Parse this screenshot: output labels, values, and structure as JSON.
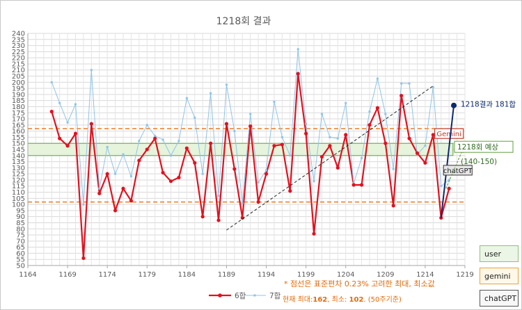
{
  "chart_data": {
    "type": "line",
    "title": "1218회 결과",
    "xlim": [
      1164,
      1219
    ],
    "ylim": [
      50,
      240
    ],
    "x_ticks": [
      1164,
      1169,
      1174,
      1179,
      1184,
      1189,
      1194,
      1199,
      1204,
      1209,
      1214,
      1219
    ],
    "y_ticks": [
      50,
      55,
      60,
      65,
      70,
      75,
      80,
      85,
      90,
      95,
      100,
      105,
      110,
      115,
      120,
      125,
      130,
      135,
      140,
      145,
      150,
      155,
      160,
      165,
      170,
      175,
      180,
      185,
      190,
      195,
      200,
      205,
      210,
      215,
      220,
      225,
      230,
      235,
      240
    ],
    "grid": true,
    "legend_position": "bottom",
    "series": [
      {
        "name": "6합",
        "color": "#e3101e",
        "x": [
          1167,
          1168,
          1169,
          1170,
          1171,
          1172,
          1173,
          1174,
          1175,
          1176,
          1177,
          1178,
          1179,
          1180,
          1181,
          1182,
          1183,
          1184,
          1185,
          1186,
          1187,
          1188,
          1189,
          1190,
          1191,
          1192,
          1193,
          1194,
          1195,
          1196,
          1197,
          1198,
          1199,
          1200,
          1201,
          1202,
          1203,
          1204,
          1205,
          1206,
          1207,
          1208,
          1209,
          1210,
          1211,
          1212,
          1213,
          1214,
          1215,
          1216,
          1217
        ],
        "y": [
          176,
          154,
          148,
          158,
          56,
          166,
          109,
          125,
          95,
          113,
          103,
          136,
          145,
          154,
          126,
          119,
          122,
          146,
          134,
          90,
          150,
          87,
          166,
          129,
          89,
          164,
          102,
          125,
          148,
          149,
          111,
          207,
          158,
          76,
          139,
          148,
          130,
          157,
          116,
          116,
          165,
          179,
          150,
          99,
          189,
          154,
          142,
          134,
          157,
          89,
          113
        ]
      },
      {
        "name": "7합",
        "color": "#8ec4e8",
        "x": [
          1167,
          1168,
          1169,
          1170,
          1171,
          1172,
          1173,
          1174,
          1175,
          1176,
          1177,
          1178,
          1179,
          1180,
          1181,
          1182,
          1183,
          1184,
          1185,
          1186,
          1187,
          1188,
          1189,
          1190,
          1191,
          1192,
          1193,
          1194,
          1195,
          1196,
          1197,
          1198,
          1199,
          1200,
          1201,
          1202,
          1203,
          1204,
          1205,
          1206,
          1207,
          1208,
          1209,
          1210,
          1211,
          1212,
          1213,
          1214,
          1215,
          1216,
          1217
        ],
        "y": [
          200,
          183,
          167,
          182,
          100,
          210,
          113,
          147,
          125,
          141,
          123,
          152,
          165,
          156,
          153,
          140,
          152,
          187,
          171,
          125,
          191,
          107,
          198,
          160,
          101,
          174,
          118,
          128,
          184,
          155,
          140,
          227,
          166,
          119,
          174,
          155,
          154,
          183,
          117,
          138,
          176,
          203,
          174,
          129,
          199,
          199,
          141,
          148,
          196,
          115,
          120
        ]
      }
    ],
    "reference_lines": {
      "upper_color": "#f07a1a",
      "upper": 162,
      "lower": 102
    },
    "trend_line": {
      "from": [
        1189,
        79
      ],
      "to": [
        1215,
        197
      ],
      "color": "#222222"
    },
    "prediction_band": {
      "y_range": [
        140,
        150
      ],
      "color": "#e6f4dc"
    },
    "result_line": {
      "from": [
        1216,
        89
      ],
      "to": [
        1217.6,
        181
      ],
      "color": "#0d2870"
    },
    "gemini_box": {
      "y_range": [
        154,
        162
      ],
      "x_range": [
        1215.2,
        1218.8
      ],
      "color": "#c0392b"
    },
    "chatgpt_box": {
      "y_range": [
        124,
        132
      ],
      "x_range": [
        1216.3,
        1219.9
      ]
    },
    "prediction_arrow": {
      "from": [
        1216.6,
        113
      ],
      "to": [
        1218.8,
        146
      ],
      "color": "#66a04a"
    },
    "annotations": {
      "result": "1218결과 181합",
      "gemini_label": "Gemini",
      "prediction": "1218회 예상",
      "prediction_range": "(140-150)",
      "chatgpt_label": "chatGPT",
      "note1": "* 점선은 표준편차 0.23% 고려한 최대, 최소값",
      "note2_prefix": "현재 최대:",
      "note2_max": "162",
      "note2_mid": ", 최소: ",
      "note2_min": "102",
      "note2_suffix": ". (50주기준)"
    }
  },
  "side_buttons": {
    "user": "user",
    "gemini": "gemini",
    "chatgpt": "chatGPT"
  }
}
